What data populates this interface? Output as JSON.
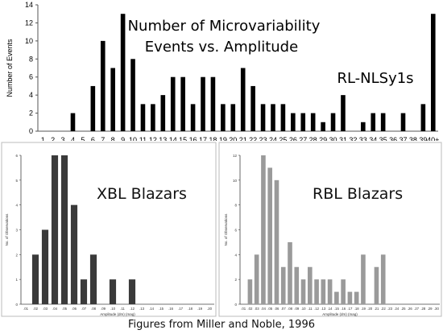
{
  "caption": "Figures from Miller and Noble, 1996",
  "chart_data": [
    {
      "type": "bar",
      "title": "Number of Microvariability",
      "subtitle": "Events vs. Amplitude",
      "annotation": "RL-NLSy1s",
      "ylabel": "Number of Events",
      "xlabel": "",
      "ylim": [
        0,
        14
      ],
      "yticks": [
        0,
        2,
        4,
        6,
        8,
        10,
        12,
        14
      ],
      "grid": false,
      "bar_color": "#000000",
      "categories": [
        "1",
        "2",
        "3",
        "4",
        "5",
        "6",
        "7",
        "8",
        "9",
        "10",
        "11",
        "12",
        "13",
        "14",
        "15",
        "16",
        "17",
        "18",
        "19",
        "20",
        "21",
        "22",
        "23",
        "24",
        "25",
        "26",
        "27",
        "28",
        "29",
        "30",
        "31",
        "32",
        "33",
        "34",
        "35",
        "36",
        "37",
        "38",
        "39",
        "40+"
      ],
      "values": [
        0,
        0,
        0,
        2,
        0,
        5,
        10,
        7,
        13,
        8,
        3,
        3,
        4,
        6,
        6,
        3,
        6,
        6,
        3,
        3,
        7,
        5,
        3,
        3,
        3,
        2,
        2,
        2,
        1,
        2,
        4,
        0,
        1,
        2,
        2,
        0,
        2,
        0,
        3,
        13
      ]
    },
    {
      "type": "bar",
      "title": "XBL Blazars",
      "ylabel": "No. of Observations",
      "xlabel": "Amplitude (dm) (mag)",
      "ylim": [
        0,
        6
      ],
      "yticks": [
        0,
        1,
        2,
        3,
        4,
        5,
        6
      ],
      "bar_color": "#3a3a3a",
      "categories": [
        ".01",
        ".02",
        ".03",
        ".04",
        ".05",
        ".06",
        ".07",
        ".08",
        ".09",
        ".10",
        ".11",
        ".12",
        ".13",
        ".14",
        ".15",
        ".16",
        ".17",
        ".18",
        ".19",
        ".20"
      ],
      "values": [
        0,
        2,
        3,
        6,
        6,
        4,
        1,
        2,
        0,
        1,
        0,
        1,
        0,
        0,
        0,
        0,
        0,
        0,
        0,
        0
      ]
    },
    {
      "type": "bar",
      "title": "RBL Blazars",
      "ylabel": "No. of Observations",
      "xlabel": "Amplitude (dm) (mag)",
      "ylim": [
        0,
        12
      ],
      "yticks": [
        0,
        2,
        4,
        6,
        8,
        10,
        12
      ],
      "bar_color": "#9a9a9a",
      "categories": [
        ".01",
        ".02",
        ".03",
        ".04",
        ".05",
        ".06",
        ".07",
        ".08",
        ".09",
        ".10",
        ".11",
        ".12",
        ".13",
        ".14",
        ".15",
        ".16",
        ".17",
        ".18",
        ".19",
        ".20",
        ".21",
        ".22",
        ".23",
        ".24",
        ".25",
        ".26",
        ".27",
        ".28",
        ".29",
        ".30"
      ],
      "values": [
        0,
        2,
        4,
        12,
        11,
        10,
        3,
        5,
        3,
        2,
        3,
        2,
        2,
        2,
        1,
        2,
        1,
        1,
        4,
        0,
        3,
        4,
        0,
        0,
        0,
        0,
        0,
        0,
        0,
        0
      ]
    }
  ]
}
